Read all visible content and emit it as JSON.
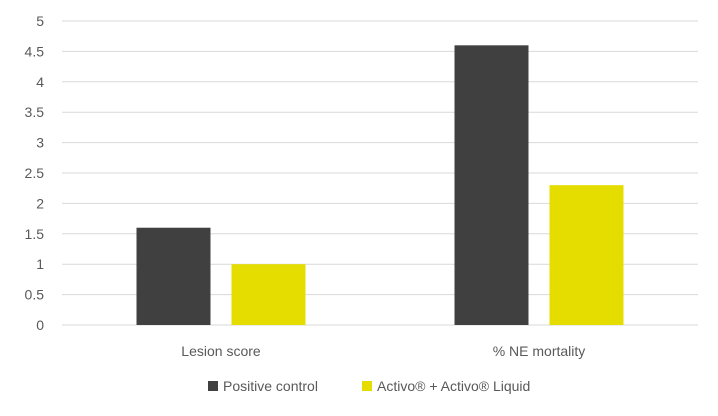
{
  "chart_data": {
    "type": "bar",
    "categories": [
      "Lesion score",
      "% NE mortality"
    ],
    "series": [
      {
        "name": "Positive control",
        "values": [
          1.6,
          4.6
        ],
        "color": "#404040"
      },
      {
        "name": "Activo® + Activo® Liquid",
        "values": [
          1.0,
          2.3
        ],
        "color": "#e6dd00"
      }
    ],
    "ylim": [
      0,
      5
    ],
    "yticks": [
      "0",
      "0.5",
      "1",
      "1.5",
      "2",
      "2.5",
      "3",
      "3.5",
      "4",
      "4.5",
      "5"
    ],
    "grid": true,
    "legend_position": "bottom",
    "title": "",
    "xlabel": "",
    "ylabel": ""
  }
}
